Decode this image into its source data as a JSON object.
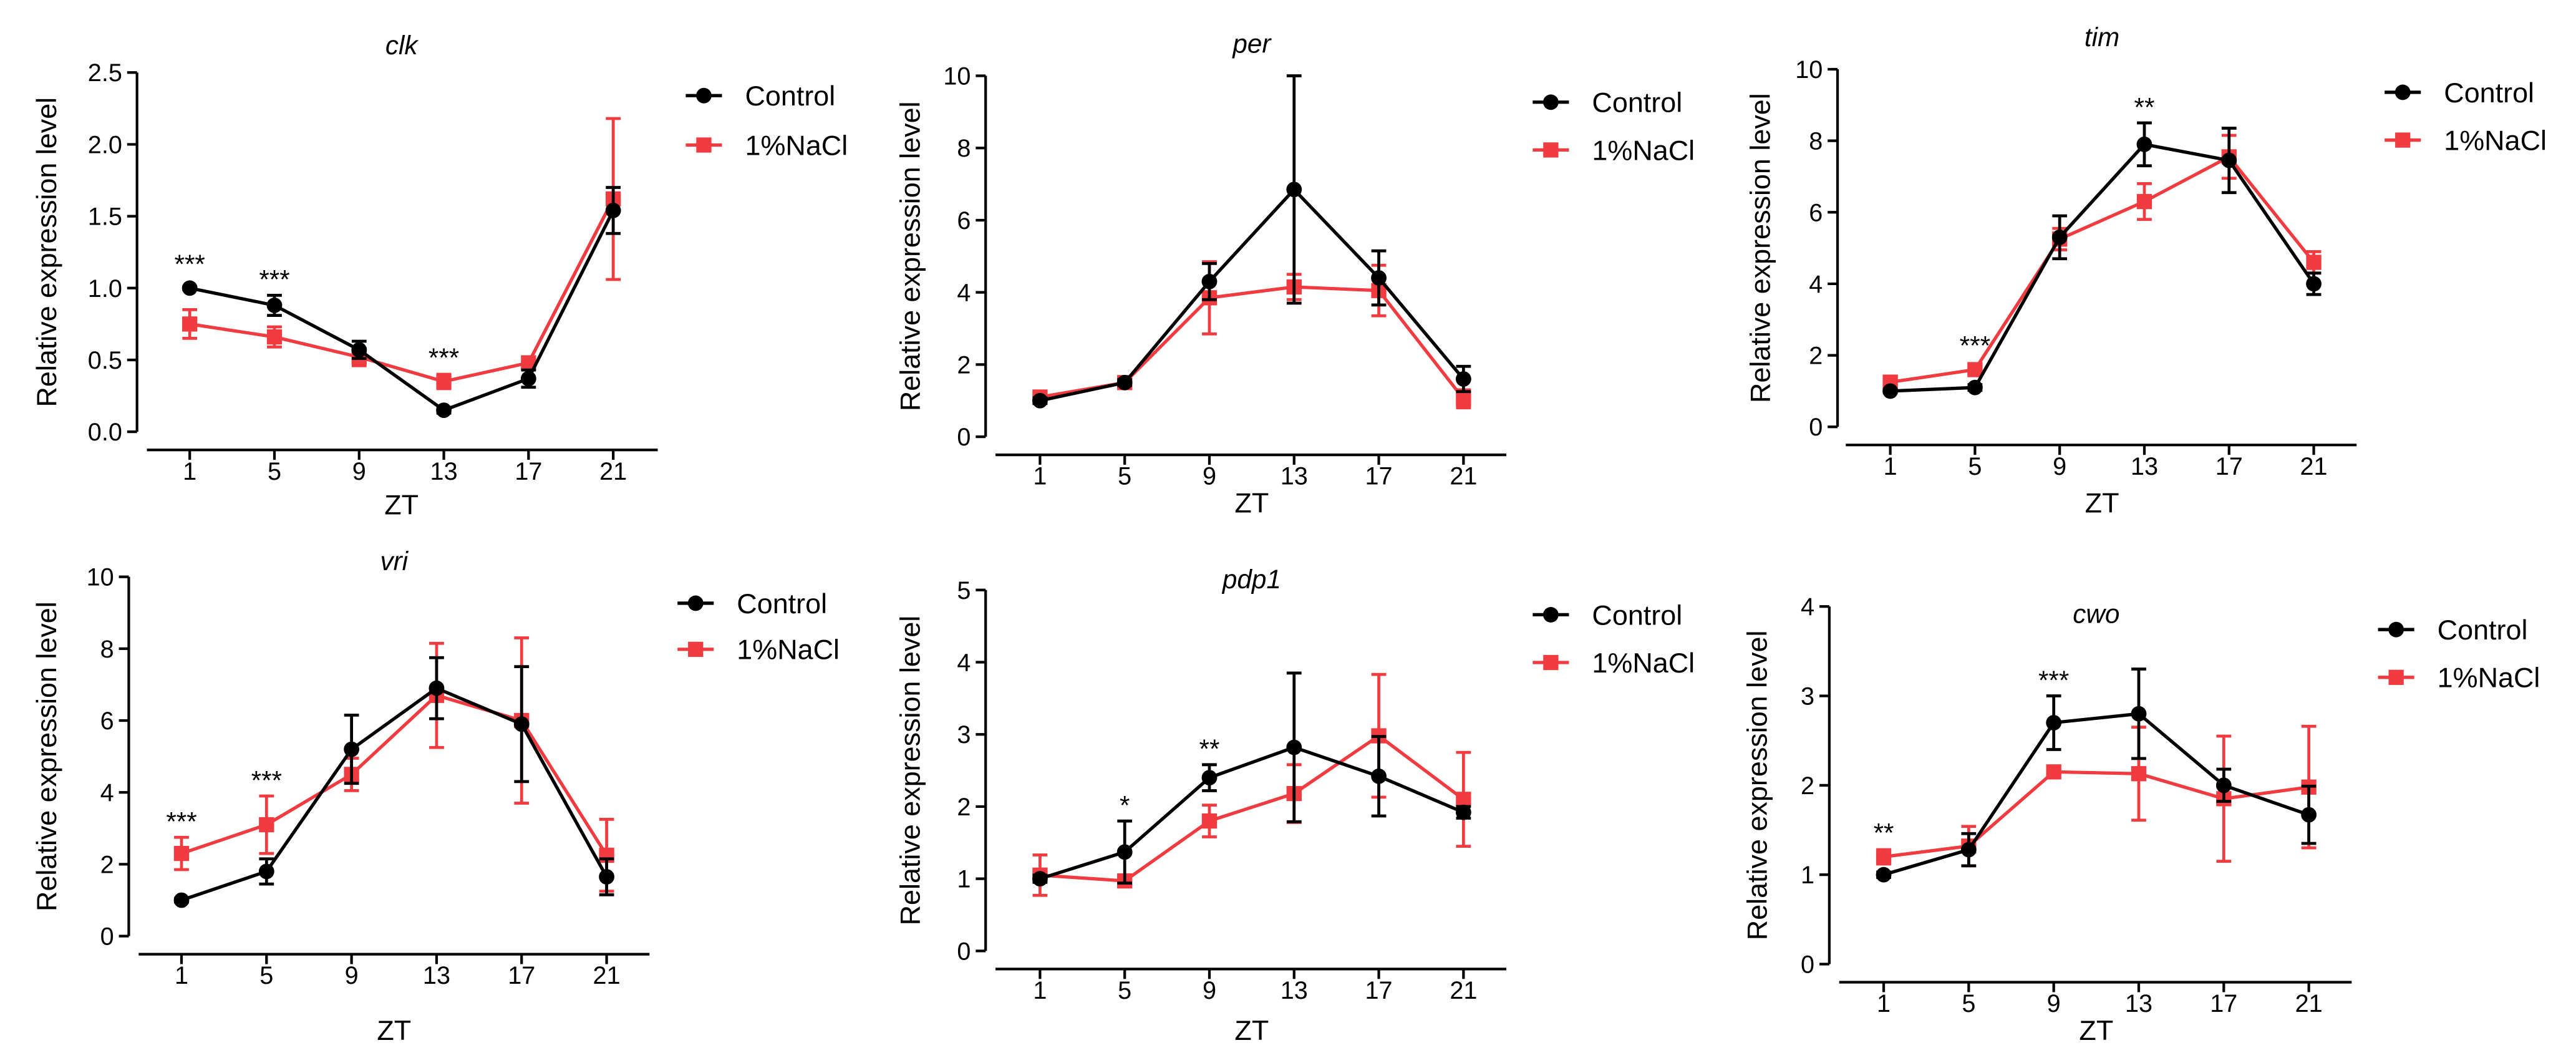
{
  "chart_data": [
    {
      "type": "line",
      "title": "clk",
      "xlabel": "ZT",
      "ylabel": "Relative expression level",
      "x": [
        1,
        5,
        9,
        13,
        17,
        21
      ],
      "ylim": [
        0,
        2.5
      ],
      "yticks": [
        "0.0",
        "0.5",
        "1.0",
        "1.5",
        "2.0",
        "2.5"
      ],
      "series": [
        {
          "name": "Control",
          "color": "#000000",
          "marker": "circle",
          "values": [
            1.0,
            0.88,
            0.57,
            0.15,
            0.37,
            1.54
          ],
          "errors": [
            0.01,
            0.07,
            0.06,
            0.02,
            0.06,
            0.16
          ]
        },
        {
          "name": "1%NaCl",
          "color": "#f03c41",
          "marker": "square",
          "values": [
            0.75,
            0.66,
            0.52,
            0.35,
            0.48,
            1.62
          ],
          "errors": [
            0.1,
            0.07,
            0.06,
            0.05,
            0.04,
            0.56
          ]
        }
      ],
      "significance": [
        {
          "x": 1,
          "label": "***"
        },
        {
          "x": 5,
          "label": "***"
        },
        {
          "x": 13,
          "label": "***"
        }
      ]
    },
    {
      "type": "line",
      "title": "per",
      "xlabel": "ZT",
      "ylabel": "Relative expression level",
      "x": [
        1,
        5,
        9,
        13,
        17,
        21
      ],
      "ylim": [
        0,
        10
      ],
      "yticks": [
        "0",
        "2",
        "4",
        "6",
        "8",
        "10"
      ],
      "series": [
        {
          "name": "Control",
          "color": "#000000",
          "marker": "circle",
          "values": [
            1.0,
            1.5,
            4.3,
            6.85,
            4.4,
            1.6
          ],
          "errors": [
            0.08,
            0.08,
            0.5,
            3.15,
            0.75,
            0.35
          ]
        },
        {
          "name": "1%NaCl",
          "color": "#f03c41",
          "marker": "square",
          "values": [
            1.1,
            1.5,
            3.85,
            4.15,
            4.05,
            1.05
          ],
          "errors": [
            0.1,
            0.1,
            1.0,
            0.35,
            0.7,
            0.25
          ]
        }
      ],
      "significance": []
    },
    {
      "type": "line",
      "title": "tim",
      "xlabel": "ZT",
      "ylabel": "Relative expression level",
      "x": [
        1,
        5,
        9,
        13,
        17,
        21
      ],
      "ylim": [
        0,
        10
      ],
      "yticks": [
        "0",
        "2",
        "4",
        "6",
        "8",
        "10"
      ],
      "series": [
        {
          "name": "Control",
          "color": "#000000",
          "marker": "circle",
          "values": [
            1.0,
            1.1,
            5.3,
            7.9,
            7.45,
            4.0
          ],
          "errors": [
            0.05,
            0.08,
            0.6,
            0.6,
            0.9,
            0.3
          ]
        },
        {
          "name": "1%NaCl",
          "color": "#f03c41",
          "marker": "square",
          "values": [
            1.25,
            1.6,
            5.25,
            6.3,
            7.55,
            4.6
          ],
          "errors": [
            0.08,
            0.1,
            0.3,
            0.5,
            0.6,
            0.3
          ]
        }
      ],
      "significance": [
        {
          "x": 5,
          "label": "***"
        },
        {
          "x": 13,
          "label": "**"
        }
      ]
    },
    {
      "type": "line",
      "title": "vri",
      "xlabel": "ZT",
      "ylabel": "Relative expression level",
      "x": [
        1,
        5,
        9,
        13,
        17,
        21
      ],
      "ylim": [
        0,
        10
      ],
      "yticks": [
        "0",
        "2",
        "4",
        "6",
        "8",
        "10"
      ],
      "series": [
        {
          "name": "Control",
          "color": "#000000",
          "marker": "circle",
          "values": [
            1.0,
            1.8,
            5.2,
            6.9,
            5.9,
            1.65
          ],
          "errors": [
            0.05,
            0.35,
            0.95,
            0.85,
            1.6,
            0.5
          ]
        },
        {
          "name": "1%NaCl",
          "color": "#f03c41",
          "marker": "square",
          "values": [
            2.3,
            3.1,
            4.5,
            6.7,
            6.0,
            2.25
          ],
          "errors": [
            0.45,
            0.8,
            0.45,
            1.45,
            2.3,
            1.0
          ]
        }
      ],
      "significance": [
        {
          "x": 1,
          "label": "***"
        },
        {
          "x": 5,
          "label": "***"
        }
      ]
    },
    {
      "type": "line",
      "title": "pdp1",
      "xlabel": "ZT",
      "ylabel": "Relative expression level",
      "x": [
        1,
        5,
        9,
        13,
        17,
        21
      ],
      "ylim": [
        0,
        5
      ],
      "yticks": [
        "0",
        "1",
        "2",
        "3",
        "4",
        "5"
      ],
      "series": [
        {
          "name": "Control",
          "color": "#000000",
          "marker": "circle",
          "values": [
            1.0,
            1.37,
            2.4,
            2.82,
            2.42,
            1.92
          ],
          "errors": [
            0.05,
            0.43,
            0.18,
            1.03,
            0.55,
            0.08
          ]
        },
        {
          "name": "1%NaCl",
          "color": "#f03c41",
          "marker": "square",
          "values": [
            1.05,
            0.97,
            1.8,
            2.18,
            2.98,
            2.1
          ],
          "errors": [
            0.28,
            0.05,
            0.22,
            0.4,
            0.85,
            0.65
          ]
        }
      ],
      "significance": [
        {
          "x": 5,
          "label": "*"
        },
        {
          "x": 9,
          "label": "**"
        }
      ]
    },
    {
      "type": "line",
      "title": "cwo",
      "xlabel": "ZT",
      "ylabel": "Relative expression level",
      "x": [
        1,
        5,
        9,
        13,
        17,
        21
      ],
      "ylim": [
        0,
        4
      ],
      "yticks": [
        "0",
        "1",
        "2",
        "3",
        "4"
      ],
      "series": [
        {
          "name": "Control",
          "color": "#000000",
          "marker": "circle",
          "values": [
            1.0,
            1.28,
            2.7,
            2.8,
            2.0,
            1.67
          ],
          "errors": [
            0.03,
            0.18,
            0.3,
            0.5,
            0.18,
            0.32
          ]
        },
        {
          "name": "1%NaCl",
          "color": "#f03c41",
          "marker": "square",
          "values": [
            1.2,
            1.32,
            2.15,
            2.13,
            1.85,
            1.98
          ],
          "errors": [
            0.08,
            0.22,
            0.03,
            0.52,
            0.7,
            0.68
          ]
        }
      ],
      "significance": [
        {
          "x": 1,
          "label": "**"
        },
        {
          "x": 9,
          "label": "***"
        }
      ]
    }
  ]
}
